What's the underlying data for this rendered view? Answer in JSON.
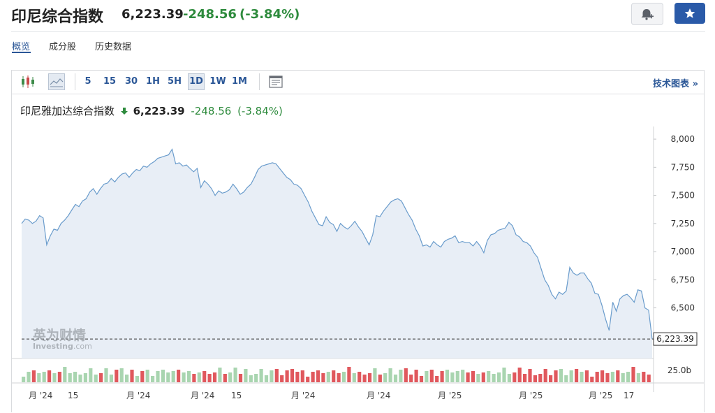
{
  "header": {
    "title": "印尼综合指数",
    "price": "6,223.39",
    "change": "-248.56",
    "change_pct": "(-3.84%)",
    "down_color": "#2e8b3d",
    "alert_icon": "bell-plus-icon",
    "watchlist_icon": "star-icon",
    "star_bg": "#2a5aa8"
  },
  "subnav": {
    "items": [
      "概览",
      "成分股",
      "历史数据"
    ],
    "active_color": "#2b5797"
  },
  "toolbar": {
    "chart_type_icons": [
      "candlestick-icon",
      "area-chart-icon"
    ],
    "intervals": [
      "5",
      "15",
      "30",
      "1H",
      "5H",
      "1D",
      "1W",
      "1M"
    ],
    "active_interval": "1D",
    "settings_icon": "chart-settings-icon",
    "tech_chart_label": "技术图表",
    "tech_chart_arrow": "»"
  },
  "legend": {
    "name": "印尼雅加达综合指数",
    "arrow": "down-arrow-icon",
    "price": "6,223.39",
    "change": "-248.56",
    "change_pct": "(-3.84%)"
  },
  "watermark": {
    "brand_cn": "英为财情",
    "brand_en": "Investing",
    "brand_suffix": ".com"
  },
  "chart_data": {
    "type": "area",
    "y_ticks": [
      "8,000",
      "7,750",
      "7,500",
      "7,250",
      "7,000",
      "6,750",
      "6,500"
    ],
    "y_tick_values": [
      8000,
      7750,
      7500,
      7250,
      7000,
      6750,
      6500
    ],
    "ylim": [
      6050,
      8100
    ],
    "last_value": 6223.39,
    "last_label": "6,223.39",
    "volume_label": "25.0b",
    "x_tick_labels": [
      "月 '24",
      "15",
      "月 '24",
      "月 '24",
      "15",
      "月 '24",
      "月 '24",
      "月 '25",
      "月 '25",
      "月 '25",
      "17"
    ],
    "line_color": "#6a9ccc",
    "fill_color": "#e8eef6",
    "up_color": "#a9d5b0",
    "down_color": "#e0585d",
    "values": [
      7250,
      7290,
      7280,
      7250,
      7270,
      7320,
      7300,
      7060,
      7140,
      7200,
      7190,
      7250,
      7280,
      7320,
      7370,
      7420,
      7400,
      7450,
      7470,
      7530,
      7560,
      7510,
      7560,
      7600,
      7610,
      7650,
      7620,
      7660,
      7690,
      7700,
      7660,
      7700,
      7730,
      7720,
      7760,
      7750,
      7780,
      7800,
      7830,
      7840,
      7850,
      7860,
      7910,
      7780,
      7790,
      7760,
      7770,
      7740,
      7710,
      7740,
      7570,
      7630,
      7600,
      7560,
      7500,
      7540,
      7520,
      7530,
      7550,
      7600,
      7560,
      7510,
      7530,
      7570,
      7600,
      7660,
      7730,
      7760,
      7770,
      7780,
      7790,
      7780,
      7740,
      7700,
      7660,
      7640,
      7600,
      7590,
      7560,
      7500,
      7440,
      7360,
      7300,
      7240,
      7230,
      7310,
      7260,
      7240,
      7180,
      7250,
      7220,
      7200,
      7230,
      7270,
      7220,
      7180,
      7120,
      7060,
      7150,
      7320,
      7310,
      7360,
      7400,
      7440,
      7460,
      7470,
      7450,
      7390,
      7330,
      7280,
      7200,
      7140,
      7050,
      7060,
      7040,
      7090,
      7060,
      7040,
      7090,
      7110,
      7120,
      7140,
      7080,
      7090,
      7080,
      7080,
      7050,
      7090,
      7050,
      6990,
      7100,
      7150,
      7160,
      7190,
      7200,
      7210,
      7260,
      7230,
      7150,
      7130,
      7090,
      7080,
      7050,
      6990,
      6950,
      6850,
      6750,
      6700,
      6620,
      6580,
      6640,
      6620,
      6650,
      6860,
      6810,
      6790,
      6810,
      6810,
      6760,
      6720,
      6630,
      6620,
      6520,
      6400,
      6300,
      6550,
      6470,
      6580,
      6610,
      6620,
      6590,
      6550,
      6660,
      6650,
      6500,
      6480,
      6223
    ]
  }
}
